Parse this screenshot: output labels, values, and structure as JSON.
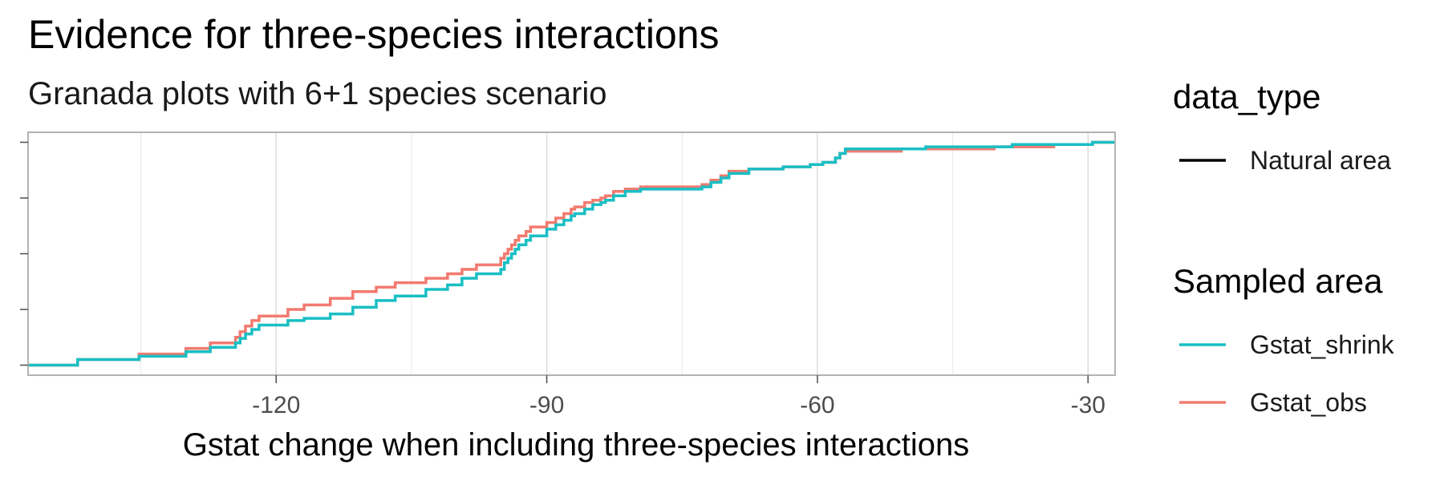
{
  "chart_data": {
    "type": "line",
    "title": "Evidence for three-species interactions",
    "subtitle": "Granada plots with 6+1 species scenario",
    "xlabel": "Gstat change when including three-species interactions",
    "ylabel": "",
    "xlim": [
      -147.5,
      -27
    ],
    "ylim": [
      0,
      1
    ],
    "x_ticks": [
      -120,
      -90,
      -60,
      -30
    ],
    "x_tick_labels": [
      "-120",
      "-90",
      "-60",
      "-30"
    ],
    "y_ticks": [
      0,
      0.25,
      0.5,
      0.75,
      1
    ],
    "grid": true,
    "legend_position": "right",
    "legend_groups": [
      {
        "title": "data_type",
        "entries": [
          {
            "label": "Natural area",
            "color": "#000000"
          }
        ]
      },
      {
        "title": "Sampled area",
        "entries": [
          {
            "label": "Gstat_shrink",
            "color": "#19BFC4"
          },
          {
            "label": "Gstat_obs",
            "color": "#F27A6F"
          }
        ]
      }
    ],
    "series": [
      {
        "name": "Gstat_obs",
        "color": "#F27A6F",
        "step": true,
        "x": [
          -147.5,
          -142.0,
          -135.2,
          -130.0,
          -127.3,
          -124.5,
          -124.0,
          -123.4,
          -122.7,
          -121.9,
          -118.7,
          -116.9,
          -114.0,
          -111.5,
          -108.9,
          -106.8,
          -103.4,
          -101.0,
          -99.4,
          -97.8,
          -95.1,
          -94.7,
          -94.3,
          -93.9,
          -93.5,
          -93.1,
          -92.3,
          -91.8,
          -90.0,
          -89.0,
          -88.1,
          -87.3,
          -86.9,
          -85.8,
          -84.9,
          -84.0,
          -83.5,
          -82.6,
          -81.3,
          -79.6,
          -72.8,
          -71.8,
          -70.7,
          -69.8,
          -67.6,
          -63.8,
          -60.8,
          -59.4,
          -58.0,
          -57.5,
          -56.9,
          -50.7,
          -48.0,
          -40.4,
          -38.4,
          -33.8,
          -32.8,
          -29.5,
          -27.0
        ],
        "y": [
          0,
          0.025,
          0.05,
          0.075,
          0.1,
          0.125,
          0.15,
          0.175,
          0.2,
          0.22,
          0.25,
          0.27,
          0.3,
          0.33,
          0.35,
          0.37,
          0.39,
          0.41,
          0.43,
          0.45,
          0.48,
          0.5,
          0.52,
          0.54,
          0.56,
          0.58,
          0.6,
          0.62,
          0.64,
          0.66,
          0.68,
          0.7,
          0.71,
          0.73,
          0.74,
          0.75,
          0.76,
          0.78,
          0.79,
          0.8,
          0.81,
          0.83,
          0.85,
          0.87,
          0.88,
          0.89,
          0.9,
          0.91,
          0.93,
          0.95,
          0.96,
          0.97,
          0.97,
          0.98,
          0.98,
          0.99,
          0.99,
          1.0,
          1.0
        ]
      },
      {
        "name": "Gstat_shrink",
        "color": "#19BFC4",
        "step": true,
        "x": [
          -147.5,
          -142.0,
          -135.2,
          -130.0,
          -127.3,
          -124.5,
          -124.0,
          -123.4,
          -122.7,
          -121.9,
          -118.7,
          -116.9,
          -114.0,
          -111.5,
          -108.9,
          -106.8,
          -103.4,
          -101.0,
          -99.4,
          -97.8,
          -95.1,
          -94.7,
          -94.3,
          -93.9,
          -93.5,
          -93.1,
          -92.3,
          -91.8,
          -90.0,
          -89.0,
          -88.1,
          -87.3,
          -86.9,
          -85.8,
          -84.9,
          -84.0,
          -83.5,
          -82.6,
          -81.3,
          -79.6,
          -72.8,
          -71.8,
          -70.7,
          -69.8,
          -67.6,
          -63.8,
          -60.8,
          -59.4,
          -58.0,
          -57.5,
          -56.9,
          -50.7,
          -48.0,
          -40.4,
          -38.4,
          -33.8,
          -32.8,
          -29.5,
          -27.0
        ],
        "y": [
          0,
          0.025,
          0.04,
          0.06,
          0.08,
          0.1,
          0.12,
          0.14,
          0.16,
          0.18,
          0.2,
          0.21,
          0.23,
          0.26,
          0.29,
          0.31,
          0.34,
          0.36,
          0.39,
          0.41,
          0.43,
          0.46,
          0.48,
          0.5,
          0.52,
          0.54,
          0.56,
          0.58,
          0.61,
          0.63,
          0.65,
          0.67,
          0.68,
          0.7,
          0.72,
          0.73,
          0.74,
          0.76,
          0.78,
          0.79,
          0.8,
          0.82,
          0.84,
          0.86,
          0.88,
          0.89,
          0.9,
          0.91,
          0.93,
          0.95,
          0.97,
          0.97,
          0.98,
          0.98,
          0.99,
          0.99,
          0.99,
          1.0,
          1.0
        ]
      }
    ]
  }
}
